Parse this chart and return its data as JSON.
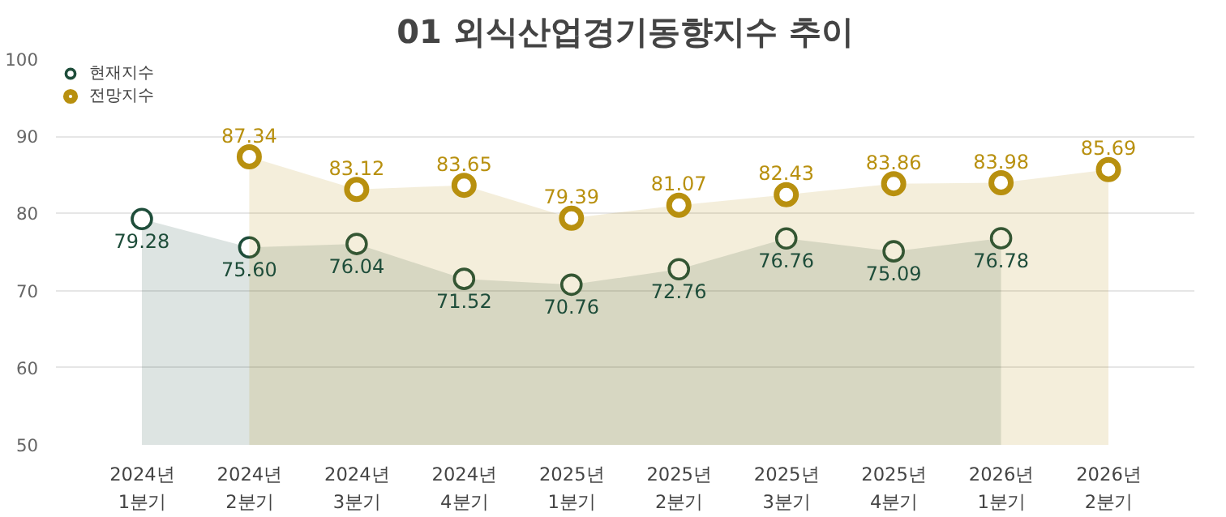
{
  "chart_data": {
    "type": "area",
    "title": "01 외식산업경기동향지수 추이",
    "categories": [
      "2024년\n1분기",
      "2024년\n2분기",
      "2024년\n3분기",
      "2024년\n4분기",
      "2025년\n1분기",
      "2025년\n2분기",
      "2025년\n3분기",
      "2025년\n4분기",
      "2026년\n1분기",
      "2026년\n2분기"
    ],
    "series": [
      {
        "name": "현재지수",
        "color": "#1e4d3a",
        "values": [
          79.28,
          75.6,
          76.04,
          71.52,
          70.76,
          72.76,
          76.76,
          75.09,
          76.78,
          null
        ],
        "value_labels": [
          "79.28",
          "75.60",
          "76.04",
          "71.52",
          "70.76",
          "72.76",
          "76.76",
          "75.09",
          "76.78",
          null
        ]
      },
      {
        "name": "전망지수",
        "color": "#b8900f",
        "values": [
          null,
          87.34,
          83.12,
          83.65,
          79.39,
          81.07,
          82.43,
          83.86,
          83.98,
          85.69
        ],
        "value_labels": [
          null,
          "87.34",
          "83.12",
          "83.65",
          "79.39",
          "81.07",
          "82.43",
          "83.86",
          "83.98",
          "85.69"
        ]
      }
    ],
    "ylim": [
      50,
      100
    ],
    "yticks": [
      50,
      60,
      70,
      80,
      90,
      100
    ],
    "grid": "y",
    "legend": "top left",
    "marker": "circle"
  }
}
